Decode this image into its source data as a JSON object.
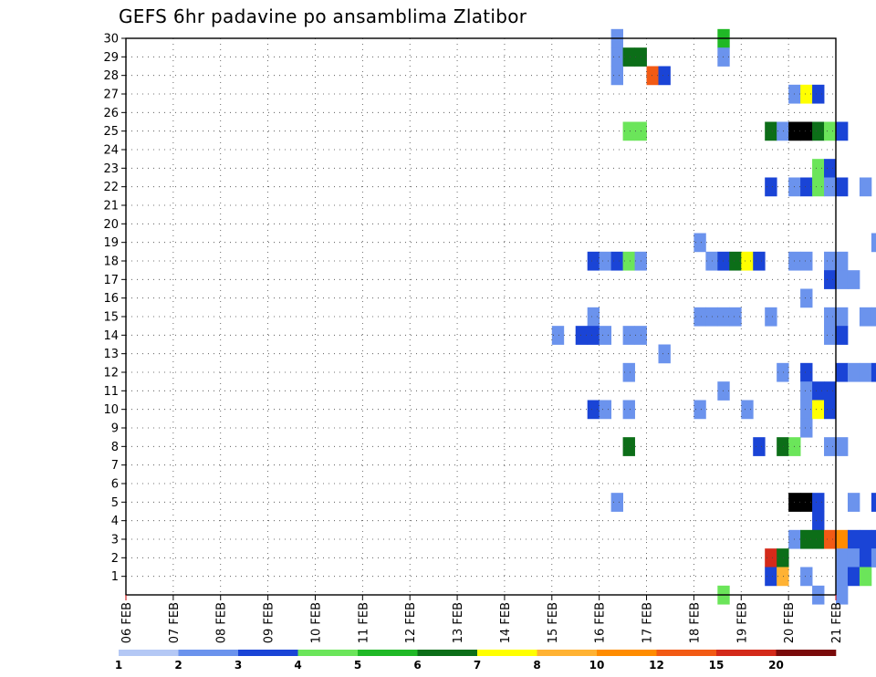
{
  "chart_data": {
    "type": "heatmap",
    "title": "GEFS 6hr padavine po ansamblima Zlatibor",
    "x_tick_labels": [
      "06 FEB",
      "07 FEB",
      "08 FEB",
      "09 FEB",
      "10 FEB",
      "11 FEB",
      "12 FEB",
      "13 FEB",
      "14 FEB",
      "15 FEB",
      "16 FEB",
      "17 FEB",
      "18 FEB",
      "19 FEB",
      "20 FEB",
      "21 FEB"
    ],
    "y_tick_labels": [
      "1",
      "2",
      "3",
      "4",
      "5",
      "6",
      "7",
      "8",
      "9",
      "10",
      "11",
      "12",
      "13",
      "14",
      "15",
      "16",
      "17",
      "18",
      "19",
      "20",
      "21",
      "22",
      "23",
      "24",
      "25",
      "26",
      "27",
      "28",
      "29",
      "30"
    ],
    "x_range_days": [
      0,
      15
    ],
    "y_range": [
      0,
      30
    ],
    "grid": "dotted",
    "colorbar": {
      "labels": [
        "1",
        "2",
        "3",
        "4",
        "5",
        "6",
        "7",
        "8",
        "10",
        "12",
        "15",
        "20"
      ],
      "colors": [
        "#b4c8f5",
        "#6b93ed",
        "#1a44d6",
        "#6be55a",
        "#20b826",
        "#0c6e18",
        "#ffff00",
        "#ffb233",
        "#ff8c00",
        "#f25a14",
        "#d42a1a",
        "#7a0a0a"
      ]
    },
    "cells": [
      [
        30,
        10.25,
        1
      ],
      [
        30,
        12.5,
        4
      ],
      [
        30,
        18.75,
        6
      ],
      [
        30,
        19,
        7
      ],
      [
        30,
        23.75,
        1
      ],
      [
        30,
        24,
        1
      ],
      [
        30,
        24.25,
        2
      ],
      [
        29,
        10.25,
        1
      ],
      [
        29,
        10.5,
        5
      ],
      [
        29,
        10.75,
        5
      ],
      [
        29,
        12.5,
        1
      ],
      [
        29,
        16.5,
        5
      ],
      [
        29,
        16.75,
        11
      ],
      [
        29,
        17,
        1
      ],
      [
        28,
        10.25,
        1
      ],
      [
        28,
        11,
        9
      ],
      [
        28,
        11.25,
        2
      ],
      [
        28,
        17,
        1
      ],
      [
        28,
        17.25,
        1
      ],
      [
        28,
        17.5,
        1
      ],
      [
        28,
        17.75,
        1
      ],
      [
        28,
        18,
        5
      ],
      [
        28,
        18.25,
        1
      ],
      [
        28,
        18.5,
        1
      ],
      [
        27,
        14,
        1
      ],
      [
        27,
        14.25,
        6
      ],
      [
        27,
        14.5,
        2
      ],
      [
        27,
        17,
        1
      ],
      [
        27,
        19,
        2
      ],
      [
        27,
        19.25,
        2
      ],
      [
        27,
        19.5,
        6
      ],
      [
        27,
        19.75,
        5
      ],
      [
        27,
        20,
        2
      ],
      [
        27,
        20.25,
        6
      ],
      [
        27,
        20.5,
        6
      ],
      [
        27,
        20.75,
        5
      ],
      [
        27,
        21,
        1
      ],
      [
        26,
        17.25,
        1
      ],
      [
        26,
        29,
        9
      ],
      [
        26,
        29.25,
        9
      ],
      [
        26,
        29.5,
        1
      ],
      [
        25,
        10.5,
        3
      ],
      [
        25,
        10.75,
        3
      ],
      [
        25,
        13.5,
        5
      ],
      [
        25,
        13.75,
        1
      ],
      [
        25,
        14,
        12
      ],
      [
        25,
        14.25,
        12
      ],
      [
        25,
        14.5,
        5
      ],
      [
        25,
        14.75,
        3
      ],
      [
        25,
        15,
        2
      ],
      [
        25,
        17.75,
        1
      ],
      [
        25,
        18,
        1
      ],
      [
        25,
        18.25,
        1
      ],
      [
        25,
        18.5,
        1
      ],
      [
        25,
        18.75,
        1
      ],
      [
        25,
        19.25,
        1
      ],
      [
        25,
        19.5,
        1
      ],
      [
        25,
        29,
        1
      ],
      [
        25,
        29.25,
        1
      ],
      [
        24,
        19,
        1
      ],
      [
        23,
        14.5,
        3
      ],
      [
        23,
        14.75,
        2
      ],
      [
        23,
        18.5,
        3
      ],
      [
        23,
        18.75,
        2
      ],
      [
        22,
        13.5,
        2
      ],
      [
        22,
        14,
        1
      ],
      [
        22,
        14.25,
        2
      ],
      [
        22,
        14.5,
        3
      ],
      [
        22,
        14.75,
        1
      ],
      [
        22,
        15,
        2
      ],
      [
        22,
        15.5,
        1
      ],
      [
        22,
        16,
        1
      ],
      [
        22,
        19.25,
        6
      ],
      [
        22,
        19.5,
        2
      ],
      [
        22,
        26.25,
        3
      ],
      [
        22,
        26.5,
        3
      ],
      [
        22,
        27,
        1
      ],
      [
        22,
        27.25,
        2
      ],
      [
        22,
        27.5,
        2
      ],
      [
        21,
        16.75,
        2
      ],
      [
        21,
        18.5,
        7
      ],
      [
        21,
        18.75,
        2
      ],
      [
        21,
        19,
        3
      ],
      [
        21,
        19.25,
        7
      ],
      [
        21,
        19.5,
        3
      ],
      [
        21,
        20,
        6
      ],
      [
        21,
        20.25,
        2
      ],
      [
        21,
        26,
        2
      ],
      [
        21,
        26.25,
        1
      ],
      [
        20,
        16.75,
        1
      ],
      [
        20,
        19,
        1
      ],
      [
        20,
        19.5,
        1
      ],
      [
        20,
        19.75,
        1
      ],
      [
        20,
        20,
        1
      ],
      [
        20,
        20.25,
        1
      ],
      [
        20,
        25.75,
        2
      ],
      [
        20,
        26,
        3
      ],
      [
        20,
        26.25,
        3
      ],
      [
        20,
        26.5,
        2
      ],
      [
        20,
        27,
        1
      ],
      [
        20,
        27.25,
        1
      ],
      [
        19,
        12,
        1
      ],
      [
        19,
        15.75,
        1
      ],
      [
        19,
        16,
        5
      ],
      [
        19,
        18.25,
        1
      ],
      [
        19,
        18.5,
        2
      ],
      [
        18,
        9.75,
        2
      ],
      [
        18,
        10,
        1
      ],
      [
        18,
        10.25,
        2
      ],
      [
        18,
        10.5,
        3
      ],
      [
        18,
        10.75,
        1
      ],
      [
        18,
        12.25,
        1
      ],
      [
        18,
        12.5,
        2
      ],
      [
        18,
        12.75,
        5
      ],
      [
        18,
        13,
        6
      ],
      [
        18,
        13.25,
        2
      ],
      [
        18,
        14,
        1
      ],
      [
        18,
        14.25,
        1
      ],
      [
        18,
        14.75,
        1
      ],
      [
        18,
        15,
        1
      ],
      [
        18,
        16.75,
        1
      ],
      [
        18,
        17,
        1
      ],
      [
        18,
        17.25,
        1
      ],
      [
        18,
        29.5,
        1
      ],
      [
        17,
        14.75,
        2
      ],
      [
        17,
        15,
        1
      ],
      [
        17,
        15.25,
        1
      ],
      [
        17,
        17.25,
        7
      ],
      [
        17,
        17.5,
        5
      ],
      [
        17,
        17.75,
        2
      ],
      [
        17,
        18,
        3
      ],
      [
        17,
        18.25,
        2
      ],
      [
        17,
        18.5,
        1
      ],
      [
        17,
        30,
        3
      ],
      [
        16,
        14.25,
        1
      ],
      [
        16,
        17,
        1
      ],
      [
        15,
        9.75,
        1
      ],
      [
        15,
        12,
        1
      ],
      [
        15,
        12.25,
        1
      ],
      [
        15,
        12.5,
        1
      ],
      [
        15,
        12.75,
        1
      ],
      [
        15,
        13.5,
        1
      ],
      [
        15,
        14.75,
        1
      ],
      [
        15,
        15,
        1
      ],
      [
        15,
        15.5,
        1
      ],
      [
        15,
        15.75,
        1
      ],
      [
        15,
        21.25,
        1
      ],
      [
        15,
        21.5,
        1
      ],
      [
        14,
        9,
        1
      ],
      [
        14,
        9.5,
        2
      ],
      [
        14,
        9.75,
        2
      ],
      [
        14,
        10,
        1
      ],
      [
        14,
        10.5,
        1
      ],
      [
        14,
        10.75,
        1
      ],
      [
        14,
        14.75,
        1
      ],
      [
        14,
        15,
        2
      ],
      [
        14,
        18.75,
        2
      ],
      [
        14,
        19,
        1
      ],
      [
        14,
        19.25,
        2
      ],
      [
        14,
        19.5,
        7
      ],
      [
        14,
        19.75,
        1
      ],
      [
        14,
        20,
        2
      ],
      [
        13,
        11.25,
        1
      ],
      [
        13,
        18.25,
        3
      ],
      [
        13,
        18.5,
        6
      ],
      [
        12,
        10.5,
        1
      ],
      [
        12,
        13.75,
        1
      ],
      [
        12,
        14.25,
        2
      ],
      [
        12,
        15,
        2
      ],
      [
        12,
        15.25,
        1
      ],
      [
        12,
        15.5,
        1
      ],
      [
        12,
        15.75,
        2
      ],
      [
        12,
        25.75,
        1
      ],
      [
        12,
        26,
        8
      ],
      [
        12,
        26.25,
        6
      ],
      [
        12,
        26.5,
        3
      ],
      [
        12,
        26.75,
        1
      ],
      [
        11,
        12.5,
        1
      ],
      [
        11,
        14.25,
        1
      ],
      [
        11,
        14.5,
        2
      ],
      [
        11,
        14.75,
        2
      ],
      [
        10,
        9.75,
        2
      ],
      [
        10,
        10,
        1
      ],
      [
        10,
        10.5,
        1
      ],
      [
        10,
        12,
        1
      ],
      [
        10,
        13,
        1
      ],
      [
        10,
        14.25,
        1
      ],
      [
        10,
        14.5,
        6
      ],
      [
        10,
        14.75,
        2
      ],
      [
        10,
        16.25,
        1
      ],
      [
        10,
        26.75,
        2
      ],
      [
        10,
        27,
        1
      ],
      [
        9,
        14.25,
        1
      ],
      [
        9,
        17.5,
        2
      ],
      [
        9,
        18.25,
        1
      ],
      [
        9,
        26.25,
        1
      ],
      [
        9,
        26.5,
        1
      ],
      [
        9,
        27,
        1
      ],
      [
        8,
        10.5,
        5
      ],
      [
        8,
        13.25,
        2
      ],
      [
        8,
        13.75,
        5
      ],
      [
        8,
        14,
        3
      ],
      [
        8,
        14.75,
        1
      ],
      [
        8,
        15,
        1
      ],
      [
        8,
        16.25,
        1
      ],
      [
        8,
        26,
        1
      ],
      [
        7,
        17.75,
        1
      ],
      [
        7,
        18,
        2
      ],
      [
        7,
        18.25,
        1
      ],
      [
        7,
        18.5,
        3
      ],
      [
        7,
        18.75,
        2
      ],
      [
        7,
        19,
        2
      ],
      [
        7,
        19.25,
        1
      ],
      [
        7,
        19.5,
        3
      ],
      [
        7,
        19.75,
        3
      ],
      [
        7,
        20,
        1
      ],
      [
        6,
        19.25,
        1
      ],
      [
        6,
        20.5,
        10
      ],
      [
        6,
        20.75,
        3
      ],
      [
        6,
        21,
        1
      ],
      [
        6,
        21.25,
        3
      ],
      [
        6,
        21.5,
        2
      ],
      [
        6,
        21.75,
        2
      ],
      [
        5,
        10.25,
        1
      ],
      [
        5,
        14,
        12
      ],
      [
        5,
        14.25,
        12
      ],
      [
        5,
        14.5,
        2
      ],
      [
        5,
        15.25,
        1
      ],
      [
        5,
        15.75,
        2
      ],
      [
        5,
        16,
        5
      ],
      [
        5,
        16.25,
        2
      ],
      [
        5,
        16.5,
        2
      ],
      [
        5,
        16.75,
        3
      ],
      [
        5,
        17,
        1
      ],
      [
        4,
        14.5,
        2
      ],
      [
        4,
        16,
        6
      ],
      [
        4,
        16.75,
        1
      ],
      [
        4,
        17,
        5
      ],
      [
        3,
        14,
        1
      ],
      [
        3,
        14.25,
        5
      ],
      [
        3,
        14.5,
        5
      ],
      [
        3,
        14.75,
        9
      ],
      [
        3,
        15,
        8
      ],
      [
        3,
        15.25,
        2
      ],
      [
        3,
        15.5,
        2
      ],
      [
        3,
        15.75,
        2
      ],
      [
        3,
        16,
        1
      ],
      [
        3,
        16.75,
        9
      ],
      [
        3,
        17,
        1
      ],
      [
        3,
        17.5,
        1
      ],
      [
        3,
        17.75,
        2
      ],
      [
        3,
        18,
        2
      ],
      [
        3,
        18.25,
        2
      ],
      [
        3,
        18.5,
        5
      ],
      [
        2,
        13.5,
        10
      ],
      [
        2,
        13.75,
        5
      ],
      [
        2,
        15,
        1
      ],
      [
        2,
        15.25,
        1
      ],
      [
        2,
        15.5,
        2
      ],
      [
        2,
        15.75,
        1
      ],
      [
        2,
        16,
        2
      ],
      [
        2,
        16.25,
        2
      ],
      [
        2,
        16.5,
        2
      ],
      [
        2,
        16.75,
        1
      ],
      [
        2,
        17,
        1
      ],
      [
        2,
        17.25,
        3
      ],
      [
        2,
        17.5,
        3
      ],
      [
        2,
        17.75,
        2
      ],
      [
        1,
        13.5,
        2
      ],
      [
        1,
        13.75,
        7
      ],
      [
        1,
        14.25,
        1
      ],
      [
        1,
        15,
        1
      ],
      [
        1,
        15.25,
        2
      ],
      [
        1,
        15.5,
        3
      ],
      [
        1,
        17.25,
        2
      ],
      [
        1,
        17.5,
        9
      ],
      [
        1,
        17.75,
        1
      ],
      [
        0,
        12.5,
        3
      ],
      [
        0,
        14.5,
        1
      ],
      [
        0,
        15,
        1
      ],
      [
        0,
        16.5,
        2
      ],
      [
        0,
        16.75,
        6
      ],
      [
        0,
        17,
        5
      ],
      [
        0,
        17.25,
        6
      ]
    ]
  }
}
